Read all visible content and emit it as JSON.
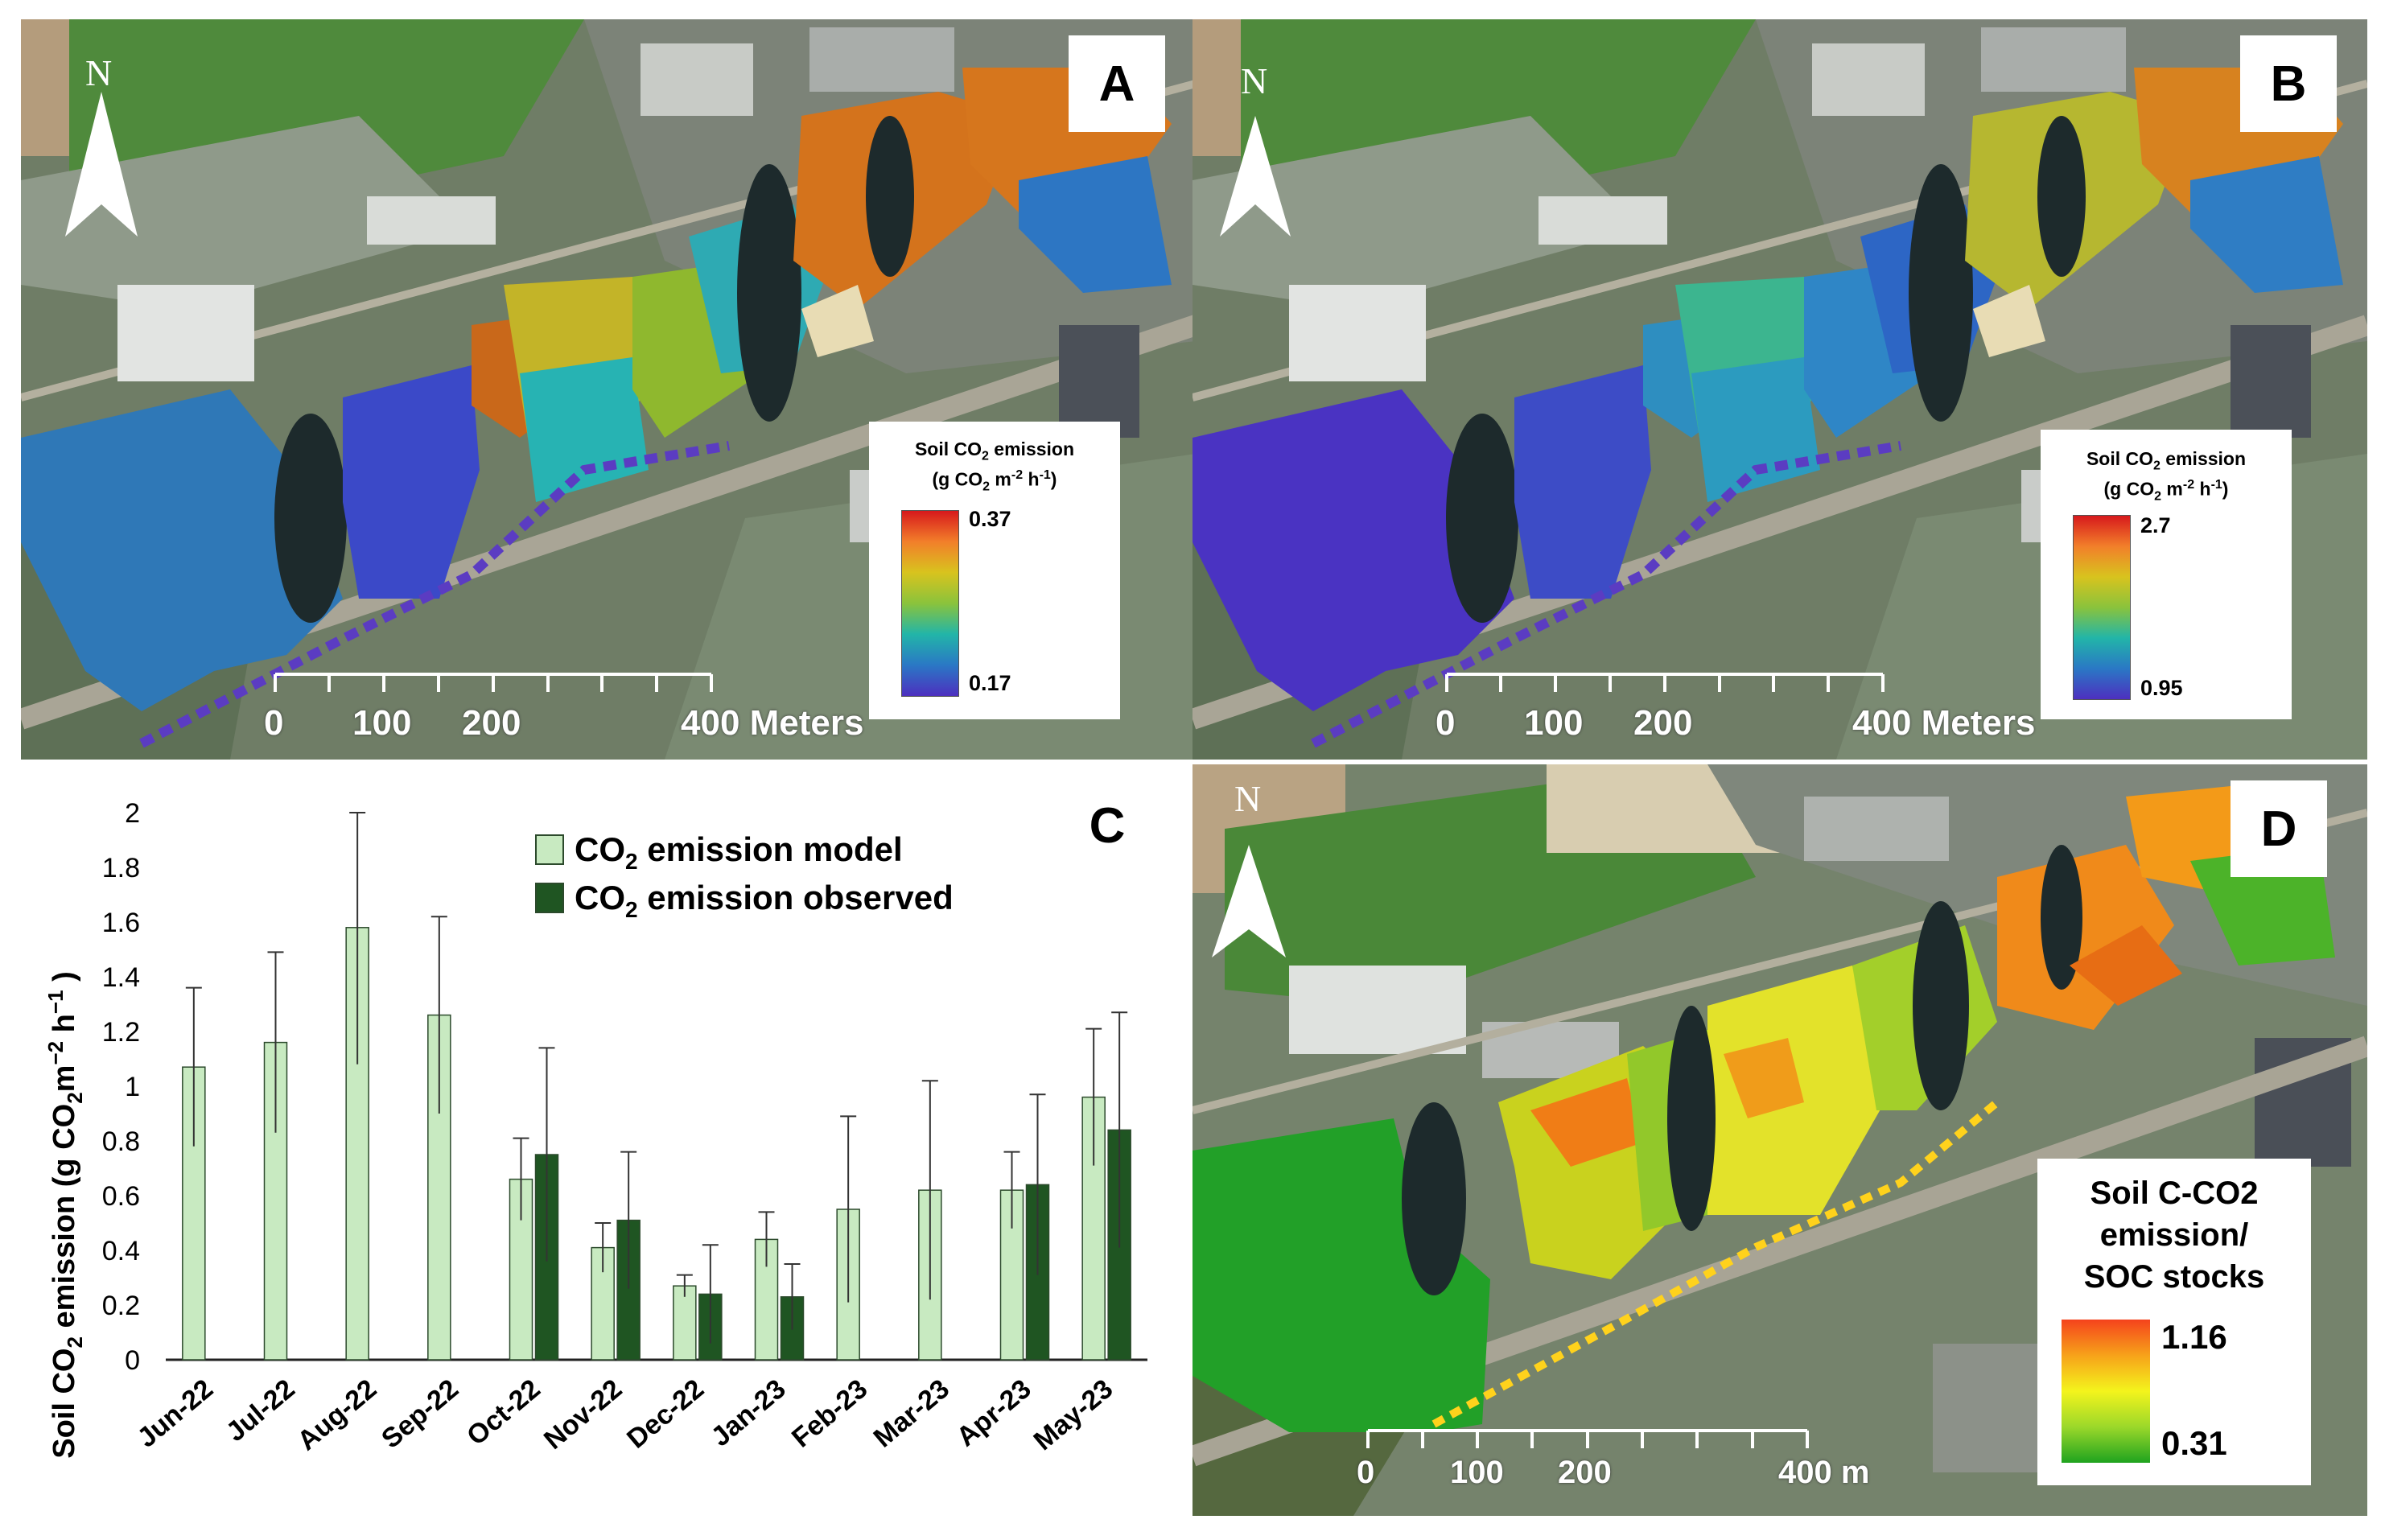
{
  "panels": {
    "A": {
      "label": "A",
      "north": "N",
      "legend": {
        "title_main": "Soil CO",
        "title_sub": "2",
        "title_tail": " emission",
        "units_a": "(g CO",
        "units_b": "2",
        "units_c": " m",
        "units_d": "-2",
        "units_e": " h",
        "units_f": "-1",
        "units_g": ")",
        "max": "0.37",
        "min": "0.17"
      },
      "scale": {
        "t0": "0",
        "t1": "100",
        "t2": "200",
        "t3": "400 Meters"
      }
    },
    "B": {
      "label": "B",
      "north": "N",
      "legend": {
        "title_main": "Soil CO",
        "title_sub": "2",
        "title_tail": " emission",
        "units_a": "(g CO",
        "units_b": "2",
        "units_c": " m",
        "units_d": "-2",
        "units_e": " h",
        "units_f": "-1",
        "units_g": ")",
        "max": "2.7",
        "min": "0.95"
      },
      "scale": {
        "t0": "0",
        "t1": "100",
        "t2": "200",
        "t3": "400 Meters"
      }
    },
    "C": {
      "label": "C"
    },
    "D": {
      "label": "D",
      "north": "N",
      "legend": {
        "line1": "Soil C-CO2",
        "line2": "emission/",
        "line3": "SOC stocks",
        "max": "1.16",
        "min": "0.31"
      },
      "scale": {
        "t0": "0",
        "t1": "100",
        "t2": "200",
        "t3": "400 m"
      }
    }
  },
  "colors": {
    "model_bar": "#c8eac1",
    "observed_bar": "#1f5522",
    "bar_edge": "#2c4a2c"
  },
  "chart_data": {
    "type": "bar",
    "ylabel_pre": "Soil CO",
    "ylabel_sub": "2",
    "ylabel_post": " emission (g CO",
    "ylabel_sub2": "2",
    "ylabel_post2": "m",
    "ylabel_sup": "−2",
    "ylabel_post3": " h",
    "ylabel_sup2": "−1",
    "ylabel_end": " )",
    "ylim": [
      0,
      2
    ],
    "yticks": [
      "0",
      "0.2",
      "0.4",
      "0.6",
      "0.8",
      "1",
      "1.2",
      "1.4",
      "1.6",
      "1.8",
      "2"
    ],
    "categories": [
      "Jun-22",
      "Jul-22",
      "Aug-22",
      "Sep-22",
      "Oct-22",
      "Nov-22",
      "Dec-22",
      "Jan-23",
      "Feb-23",
      "Mar-23",
      "Apr-23",
      "May-23"
    ],
    "legend": {
      "placement": "top-right"
    },
    "series": [
      {
        "name": "CO2 emission model",
        "legend_main": "CO",
        "legend_sub": "2",
        "legend_tail": " emission model",
        "values": [
          1.07,
          1.16,
          1.58,
          1.26,
          0.66,
          0.41,
          0.27,
          0.44,
          0.55,
          0.62,
          0.62,
          0.96
        ],
        "err": [
          0.29,
          0.33,
          0.5,
          0.36,
          0.15,
          0.09,
          0.04,
          0.1,
          0.34,
          0.4,
          0.14,
          0.25
        ]
      },
      {
        "name": "CO2 emission observed",
        "legend_main": "CO",
        "legend_sub": "2",
        "legend_tail": " emission observed",
        "values": [
          null,
          null,
          null,
          null,
          0.75,
          0.51,
          0.24,
          0.23,
          null,
          null,
          0.64,
          0.84
        ],
        "err": [
          null,
          null,
          null,
          null,
          0.39,
          0.25,
          0.18,
          0.12,
          null,
          null,
          0.33,
          0.43
        ]
      }
    ]
  }
}
